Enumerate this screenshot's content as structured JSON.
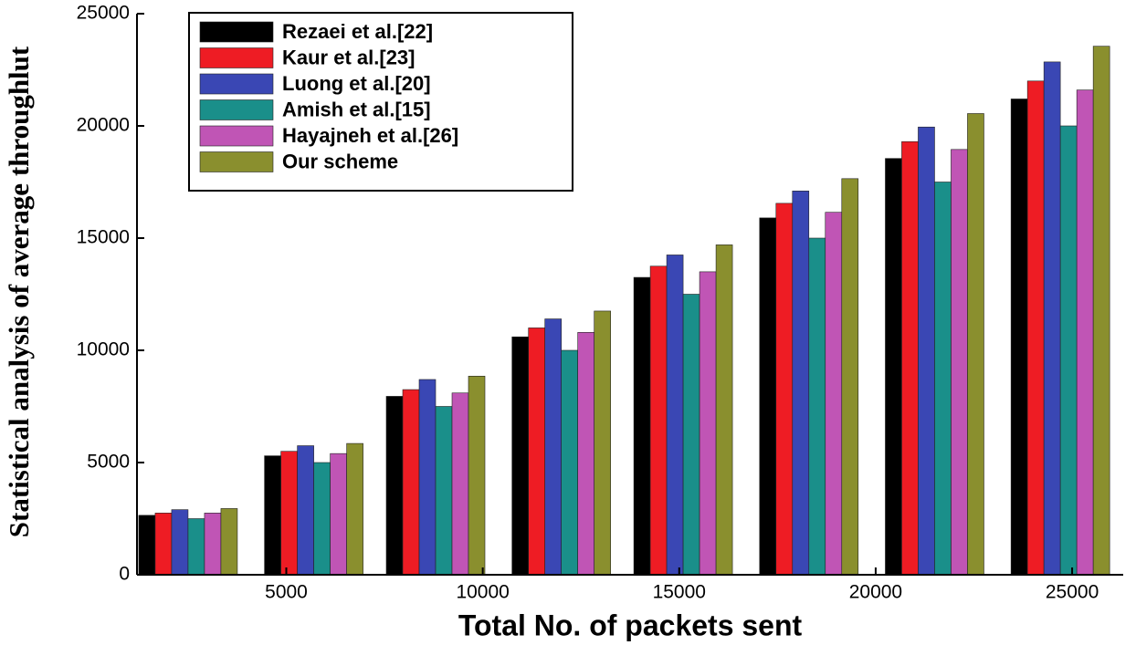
{
  "chart_data": {
    "type": "bar",
    "x_label": "Total No. of packets sent",
    "y_label": "Statistical analysis of average throughlut",
    "x": [
      2500,
      5700,
      8800,
      12000,
      15100,
      18300,
      21500,
      24700
    ],
    "xlim": [
      1200,
      26300
    ],
    "xticks": [
      5000,
      10000,
      15000,
      20000,
      25000
    ],
    "ylim": [
      0,
      25000
    ],
    "yticks": [
      0,
      5000,
      10000,
      15000,
      20000,
      25000
    ],
    "legend": "upper left",
    "series": [
      {
        "name": "Rezaei et al.[22]",
        "color": "#000000",
        "values": [
          2650,
          5300,
          7950,
          10600,
          13250,
          15900,
          18550,
          21200
        ]
      },
      {
        "name": "Kaur et al.[23]",
        "color": "#ee1c24",
        "values": [
          2750,
          5500,
          8250,
          11000,
          13750,
          16550,
          19300,
          22000
        ]
      },
      {
        "name": "Luong et al.[20]",
        "color": "#3a47b4",
        "values": [
          2900,
          5750,
          8700,
          11400,
          14250,
          17100,
          19950,
          22850
        ]
      },
      {
        "name": "Amish et al.[15]",
        "color": "#1a8f8a",
        "values": [
          2500,
          5000,
          7500,
          10000,
          12500,
          15000,
          17500,
          20000
        ]
      },
      {
        "name": "Hayajneh et al.[26]",
        "color": "#c055b5",
        "values": [
          2750,
          5400,
          8100,
          10800,
          13500,
          16150,
          18950,
          21600
        ]
      },
      {
        "name": "Our scheme",
        "color": "#8a8f2e",
        "values": [
          2950,
          5850,
          8850,
          11750,
          14700,
          17650,
          20550,
          23550
        ]
      }
    ]
  }
}
